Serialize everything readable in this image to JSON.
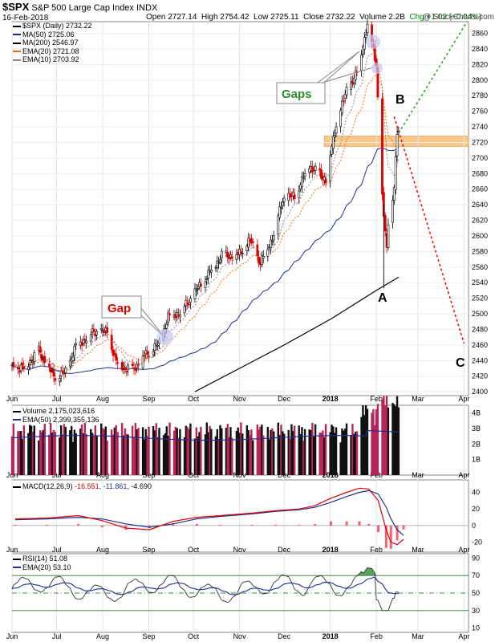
{
  "header": {
    "symbol": "$SPX",
    "name": "S&P 500 Large Cap Index",
    "exchange": "INDX",
    "date": "16-Feb-2018",
    "open": "Open 2727.14",
    "high": "High 2754.42",
    "low": "Low 2725.11",
    "close": "Close 2732.22",
    "volume": "Volume 2.2B",
    "change": "Chg +1.02 (+0.04%)",
    "brand": "@ StockCharts.com"
  },
  "legends": {
    "price": [
      {
        "text": "$SPX (Daily) 2732.22",
        "color": "#000000"
      },
      {
        "text": "MA(50) 2725.06",
        "color": "#1f2f8f"
      },
      {
        "text": "MA(200) 2546.97",
        "color": "#000000"
      },
      {
        "text": "EMA(20) 2721.08",
        "color": "#ff6a00"
      },
      {
        "text": "EMA(10) 2703.92",
        "color": "#888888"
      }
    ],
    "volume": [
      {
        "text": "Volume 2,175,023,616",
        "color": "#000000"
      },
      {
        "text": "EMA(50) 2,399,355,136",
        "color": "#1f2f8f"
      }
    ],
    "macd": {
      "label": "MACD(12,26,9)",
      "v1": "-16.551",
      "v2": ", -11.861",
      "v3": ", -4.690"
    },
    "rsi": [
      {
        "text": "RSI(14) 51.08",
        "color": "#000000"
      },
      {
        "text": "EMA(20) 53.10",
        "color": "#1f2f8f"
      }
    ]
  },
  "annotations": {
    "gaps_label": "Gaps",
    "gap_label": "Gap",
    "wave_a": "A",
    "wave_b": "B",
    "wave_c": "C"
  },
  "colors": {
    "up": "#000000",
    "down": "#dd0000",
    "ma50": "#1f2f8f",
    "ma200": "#000000",
    "ema20": "#ff6a00",
    "ema10": "#888888",
    "resistance_band": "#f9c88a",
    "projection_up": "#22a022",
    "projection_down": "#ee0000",
    "volume_bar": "#b8255a",
    "macd_hist": "#ee2233",
    "rsi_fill": "#2f8f2f"
  },
  "chart_data": [
    {
      "type": "candlestick",
      "title": "$SPX (Daily)",
      "yaxis_ticks": [
        2400,
        2420,
        2440,
        2460,
        2480,
        2500,
        2520,
        2540,
        2560,
        2580,
        2600,
        2620,
        2640,
        2660,
        2680,
        2700,
        2720,
        2740,
        2760,
        2780,
        2800,
        2820,
        2840,
        2860
      ],
      "ylim": [
        2395,
        2875
      ],
      "xaxis_ticks": [
        "Jun",
        "Jul",
        "Aug",
        "Sep",
        "Oct",
        "Nov",
        "Dec",
        "2018",
        "Feb",
        "Mar",
        "Apr"
      ],
      "close_path": [
        [
          "2017-06-01",
          2430
        ],
        [
          "2017-06-09",
          2431
        ],
        [
          "2017-06-19",
          2453
        ],
        [
          "2017-06-29",
          2419
        ],
        [
          "2017-07-07",
          2425
        ],
        [
          "2017-07-14",
          2459
        ],
        [
          "2017-07-26",
          2477
        ],
        [
          "2017-08-04",
          2476
        ],
        [
          "2017-08-10",
          2438
        ],
        [
          "2017-08-17",
          2430
        ],
        [
          "2017-08-21",
          2428
        ],
        [
          "2017-08-29",
          2446
        ],
        [
          "2017-09-08",
          2461
        ],
        [
          "2017-09-14",
          2496
        ],
        [
          "2017-09-22",
          2502
        ],
        [
          "2017-09-29",
          2519
        ],
        [
          "2017-10-09",
          2545
        ],
        [
          "2017-10-20",
          2575
        ],
        [
          "2017-10-31",
          2575
        ],
        [
          "2017-11-08",
          2594
        ],
        [
          "2017-11-15",
          2565
        ],
        [
          "2017-11-24",
          2602
        ],
        [
          "2017-11-30",
          2647
        ],
        [
          "2017-12-08",
          2651
        ],
        [
          "2017-12-18",
          2690
        ],
        [
          "2017-12-29",
          2673
        ],
        [
          "2018-01-05",
          2743
        ],
        [
          "2018-01-12",
          2786
        ],
        [
          "2018-01-19",
          2810
        ],
        [
          "2018-01-26",
          2872
        ],
        [
          "2018-02-01",
          2821
        ],
        [
          "2018-02-05",
          2648
        ],
        [
          "2018-02-08",
          2581
        ],
        [
          "2018-02-09",
          2619
        ],
        [
          "2018-02-13",
          2662
        ],
        [
          "2018-02-15",
          2731
        ],
        [
          "2018-02-16",
          2732
        ]
      ],
      "ma200_path": [
        [
          "2017-10-02",
          2400
        ],
        [
          "2017-11-01",
          2430
        ],
        [
          "2017-12-01",
          2460
        ],
        [
          "2018-01-02",
          2494
        ],
        [
          "2018-02-01",
          2530
        ],
        [
          "2018-02-16",
          2547
        ]
      ],
      "resistance_band": [
        2715,
        2728
      ],
      "projection_up": {
        "from": [
          "2018-02-16",
          2732
        ],
        "to": [
          "2018-04-03",
          2875
        ]
      },
      "projection_down": {
        "from": [
          "2018-02-13",
          2753
        ],
        "to": [
          "2018-04-01",
          2462
        ]
      }
    },
    {
      "type": "bar",
      "title": "Volume",
      "yaxis_ticks": [
        "1B",
        "2B",
        "3B",
        "4B"
      ]
    },
    {
      "type": "line",
      "title": "MACD(12,26,9)",
      "yaxis_ticks": [
        40,
        20,
        0,
        -20
      ],
      "macd_path": [
        [
          0,
          8
        ],
        [
          20,
          9
        ],
        [
          40,
          12
        ],
        [
          55,
          6
        ],
        [
          70,
          -3
        ],
        [
          85,
          -5
        ],
        [
          100,
          5
        ],
        [
          115,
          10
        ],
        [
          130,
          12
        ],
        [
          150,
          15
        ],
        [
          165,
          18
        ],
        [
          180,
          20
        ],
        [
          190,
          24
        ],
        [
          200,
          33
        ],
        [
          210,
          40
        ],
        [
          218,
          45
        ],
        [
          224,
          44
        ],
        [
          230,
          30
        ],
        [
          235,
          -5
        ],
        [
          238,
          -20
        ],
        [
          242,
          -23
        ],
        [
          246,
          -16.551
        ]
      ],
      "signal_path": [
        [
          0,
          7
        ],
        [
          20,
          8
        ],
        [
          40,
          10
        ],
        [
          55,
          8
        ],
        [
          70,
          2
        ],
        [
          85,
          -2
        ],
        [
          100,
          2
        ],
        [
          115,
          8
        ],
        [
          130,
          11
        ],
        [
          150,
          14
        ],
        [
          165,
          17
        ],
        [
          180,
          19
        ],
        [
          190,
          22
        ],
        [
          200,
          28
        ],
        [
          210,
          35
        ],
        [
          218,
          40
        ],
        [
          224,
          42
        ],
        [
          230,
          38
        ],
        [
          235,
          22
        ],
        [
          238,
          8
        ],
        [
          242,
          -5
        ],
        [
          246,
          -11.861
        ]
      ]
    },
    {
      "type": "line",
      "title": "RSI(14)",
      "yaxis_ticks": [
        90,
        70,
        50,
        30,
        10
      ],
      "guides": [
        70,
        50,
        30
      ]
    }
  ]
}
